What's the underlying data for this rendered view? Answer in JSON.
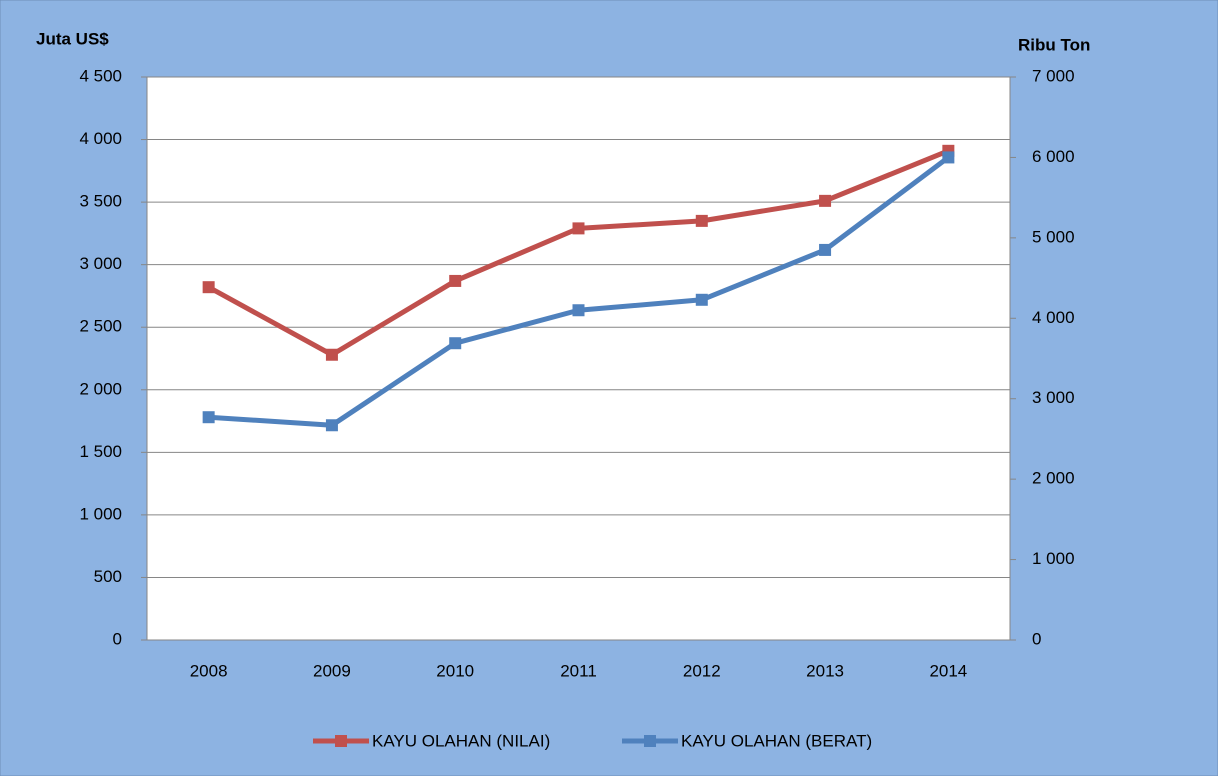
{
  "chart_data": {
    "type": "line",
    "y_label": "Juta US$",
    "y2_label": "Ribu Ton",
    "categories": [
      "2008",
      "2009",
      "2010",
      "2011",
      "2012",
      "2013",
      "2014"
    ],
    "series": [
      {
        "name": "KAYU OLAHAN (NILAI)",
        "color": "#c0504d",
        "values": [
          2820,
          2280,
          2870,
          3290,
          3350,
          3510,
          3910
        ]
      },
      {
        "name": "KAYU OLAHAN (BERAT)",
        "color": "#4f81bd",
        "axis": "y2",
        "values": [
          2770,
          2670,
          3690,
          4100,
          4230,
          4850,
          6000
        ]
      }
    ],
    "ylim": [
      0,
      4500
    ],
    "yticks": [
      0,
      500,
      {
        "value": 1000,
        "label": "1 000"
      },
      {
        "value": 1500,
        "label": "1 500"
      },
      {
        "value": 2000,
        "label": "2 000"
      },
      {
        "value": 2500,
        "label": "2 500"
      },
      {
        "value": 3000,
        "label": "3 000"
      },
      {
        "value": 3500,
        "label": "3 500"
      },
      {
        "value": 4000,
        "label": "4 000"
      },
      {
        "value": 4500,
        "label": "4 500"
      }
    ],
    "y2lim": [
      0,
      7000
    ],
    "y2ticks": [
      0,
      {
        "value": 1000,
        "label": "1 000"
      },
      {
        "value": 2000,
        "label": "2 000"
      },
      {
        "value": 3000,
        "label": "3 000"
      },
      {
        "value": 4000,
        "label": "4 000"
      },
      {
        "value": 5000,
        "label": "5 000"
      },
      {
        "value": 6000,
        "label": "6 000"
      },
      {
        "value": 7000,
        "label": "7 000"
      }
    ],
    "grid": true,
    "legend": "bottom"
  }
}
